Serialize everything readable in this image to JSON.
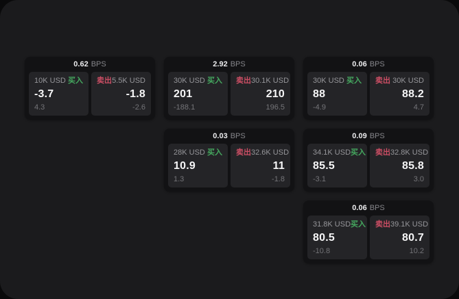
{
  "theme": {
    "page_bg": "#0a0a0b",
    "container_bg": "#1b1b1d",
    "card_bg": "#121214",
    "panel_bg": "#242427",
    "buy_color": "#45a85f",
    "sell_color": "#cb4e64",
    "primary_text": "#f6f6f7",
    "muted_text": "#96969a"
  },
  "labels": {
    "bps": "BPS",
    "buy": "买入",
    "sell": "卖出"
  },
  "cards": [
    {
      "grid": {
        "row": 1,
        "col": 1
      },
      "bps": "0.62",
      "buy": {
        "size": "10K USD",
        "price": "-3.7",
        "delta": "4.3"
      },
      "sell": {
        "size": "5.5K USD",
        "price": "-1.8",
        "delta": "-2.6"
      }
    },
    {
      "grid": {
        "row": 1,
        "col": 2
      },
      "bps": "2.92",
      "buy": {
        "size": "30K USD",
        "price": "201",
        "delta": "-188.1"
      },
      "sell": {
        "size": "30.1K USD",
        "price": "210",
        "delta": "196.5"
      }
    },
    {
      "grid": {
        "row": 1,
        "col": 3
      },
      "bps": "0.06",
      "buy": {
        "size": "30K USD",
        "price": "88",
        "delta": "-4.9"
      },
      "sell": {
        "size": "30K USD",
        "price": "88.2",
        "delta": "4.7"
      }
    },
    {
      "grid": {
        "row": 2,
        "col": 2
      },
      "bps": "0.03",
      "buy": {
        "size": "28K USD",
        "price": "10.9",
        "delta": "1.3"
      },
      "sell": {
        "size": "32.6K USD",
        "price": "11",
        "delta": "-1.8"
      }
    },
    {
      "grid": {
        "row": 2,
        "col": 3
      },
      "bps": "0.09",
      "buy": {
        "size": "34.1K USD",
        "price": "85.5",
        "delta": "-3.1"
      },
      "sell": {
        "size": "32.8K USD",
        "price": "85.8",
        "delta": "3.0"
      }
    },
    {
      "grid": {
        "row": 3,
        "col": 3
      },
      "bps": "0.06",
      "buy": {
        "size": "31.8K USD",
        "price": "80.5",
        "delta": "-10.8"
      },
      "sell": {
        "size": "39.1K USD",
        "price": "80.7",
        "delta": "10.2"
      }
    }
  ]
}
